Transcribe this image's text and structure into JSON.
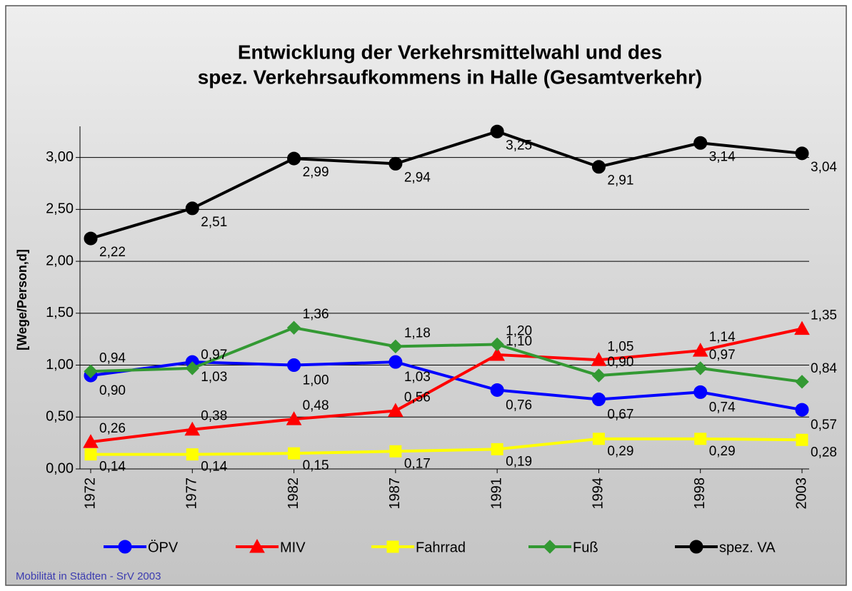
{
  "chart_data": {
    "type": "line",
    "title": "Entwicklung der Verkehrsmittelwahl und des",
    "subtitle": "spez. Verkehrsaufkommens in Halle (Gesamtverkehr)",
    "y_label": "[Wege/Person,d]",
    "footer": "Mobilität in Städten - SrV 2003",
    "categories": [
      "1972",
      "1977",
      "1982",
      "1987",
      "1991",
      "1994",
      "1998",
      "2003"
    ],
    "ylim": [
      0,
      3.3
    ],
    "yticks": [
      {
        "value": 0,
        "label": "0,00"
      },
      {
        "value": 0.5,
        "label": "0,50"
      },
      {
        "value": 1,
        "label": "1,00"
      },
      {
        "value": 1.5,
        "label": "1,50"
      },
      {
        "value": 2,
        "label": "2,00"
      },
      {
        "value": 2.5,
        "label": "2,50"
      },
      {
        "value": 3,
        "label": "3,00"
      }
    ],
    "grid": true,
    "legend": "bottom",
    "series": [
      {
        "name": "ÖPV",
        "color": "#0000ff",
        "marker": "circle",
        "values": [
          0.9,
          1.03,
          1.0,
          1.03,
          0.76,
          0.67,
          0.74,
          0.57
        ],
        "value_labels": [
          "0,90",
          "1,03",
          "1,00",
          "1,03",
          "0,76",
          "0,67",
          "0,74",
          "0,57"
        ]
      },
      {
        "name": "MIV",
        "color": "#ff0000",
        "marker": "triangle",
        "values": [
          0.26,
          0.38,
          0.48,
          0.56,
          1.1,
          1.05,
          1.14,
          1.35
        ],
        "value_labels": [
          "0,26",
          "0,38",
          "0,48",
          "0,56",
          "1,10",
          "1,05",
          "1,14",
          "1,35"
        ]
      },
      {
        "name": "Fahrrad",
        "color": "#ffff00",
        "marker": "square",
        "values": [
          0.14,
          0.14,
          0.15,
          0.17,
          0.19,
          0.29,
          0.29,
          0.28
        ],
        "value_labels": [
          "0,14",
          "0,14",
          "0,15",
          "0,17",
          "0,19",
          "0,29",
          "0,29",
          "0,28"
        ]
      },
      {
        "name": "Fuß",
        "color": "#339933",
        "marker": "diamond",
        "values": [
          0.94,
          0.97,
          1.36,
          1.18,
          1.2,
          0.9,
          0.97,
          0.84
        ],
        "value_labels": [
          "0,94",
          "0,97",
          "1,36",
          "1,18",
          "1,20",
          "0,90",
          "0,97",
          "0,84"
        ]
      },
      {
        "name": "spez. VA",
        "color": "#000000",
        "marker": "circle",
        "values": [
          2.22,
          2.51,
          2.99,
          2.94,
          3.25,
          2.91,
          3.14,
          3.04
        ],
        "value_labels": [
          "2,22",
          "2,51",
          "2,99",
          "2,94",
          "3,25",
          "2,91",
          "3,14",
          "3,04"
        ]
      }
    ]
  }
}
